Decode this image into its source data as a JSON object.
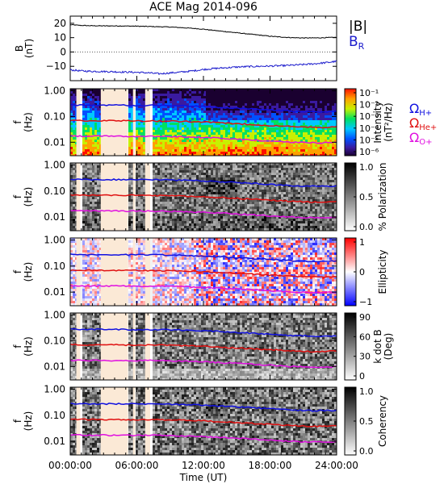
{
  "title": "ACE Mag 2014-096",
  "colors": {
    "br": "#1a1acc",
    "h_plus": "#1010e0",
    "he_plus": "#e01010",
    "o_plus": "#e010e0",
    "mask": "#fbe9d6",
    "line": "#000000"
  },
  "chart_data": [
    {
      "type": "line",
      "panel": "field",
      "ylabel": "B\n(nT)",
      "ylim": [
        -20,
        25
      ],
      "yticks": [
        -10,
        0,
        10,
        20
      ],
      "xlim": [
        0,
        24
      ],
      "legend": [
        "|B|",
        "B_R"
      ],
      "series": [
        {
          "name": "|B|",
          "x": [
            0,
            1,
            2,
            3,
            4,
            5,
            6,
            7,
            8,
            9,
            10,
            11,
            12,
            13,
            14,
            15,
            16,
            17,
            18,
            19,
            20,
            21,
            22,
            23,
            24
          ],
          "values": [
            19,
            18.5,
            18.3,
            18.2,
            18.2,
            18.1,
            18,
            17.8,
            17.6,
            17.4,
            17,
            16.5,
            15.9,
            15,
            14.2,
            13.4,
            12.6,
            11.8,
            11,
            10.4,
            10,
            9.8,
            9.8,
            10,
            10.2
          ]
        },
        {
          "name": "B_R",
          "x": [
            0,
            1,
            2,
            3,
            4,
            5,
            6,
            7,
            8,
            9,
            10,
            11,
            12,
            13,
            14,
            15,
            16,
            17,
            18,
            19,
            20,
            21,
            22,
            23,
            24
          ],
          "values": [
            -12.5,
            -13.2,
            -13.5,
            -13.6,
            -13.8,
            -14,
            -14.2,
            -14.5,
            -15.2,
            -14.6,
            -14,
            -13.2,
            -12.2,
            -11.5,
            -11,
            -10.5,
            -10.2,
            -10,
            -9.8,
            -9.6,
            -9.2,
            -8.8,
            -8.2,
            -7.5,
            -6.5
          ]
        }
      ]
    },
    {
      "type": "heatmap",
      "panel": "intensity",
      "ylabel": "f\n(Hz)",
      "colorbar_label": "Intensity\n(nT²/Hz)",
      "colorbar_ticks": [
        "10⁻¹",
        "10⁻²",
        "10⁻³",
        "10⁻⁴",
        "10⁻⁵",
        "10⁻⁶"
      ],
      "legend": [
        "ΩH+",
        "ΩHe+",
        "ΩO+"
      ]
    },
    {
      "type": "heatmap",
      "panel": "polarization",
      "ylabel": "f\n(Hz)",
      "colorbar_label": "% Polarization",
      "colorbar_ticks": [
        "1.0",
        "0.5",
        "0.0"
      ]
    },
    {
      "type": "heatmap",
      "panel": "ellipticity",
      "ylabel": "f\n(Hz)",
      "colorbar_label": "Ellipticity",
      "colorbar_ticks": [
        "1",
        "0",
        "−1"
      ]
    },
    {
      "type": "heatmap",
      "panel": "kdotb",
      "ylabel": "f\n(Hz)",
      "colorbar_label": "k dot B\n(Deg)",
      "colorbar_ticks": [
        "90",
        "60",
        "30",
        "0"
      ]
    },
    {
      "type": "heatmap",
      "panel": "coherency",
      "ylabel": "f\n(Hz)",
      "colorbar_label": "Coherency",
      "colorbar_ticks": [
        "1.0",
        "0.5",
        "0.0"
      ]
    }
  ],
  "spectrogram": {
    "yticks": [
      "1.00",
      "0.10",
      "0.01"
    ],
    "ylim_hz": [
      0.003,
      1.2
    ],
    "mask_intervals_hours": [
      [
        0.55,
        0.9
      ],
      [
        2.75,
        5.2
      ],
      [
        5.65,
        5.85
      ],
      [
        6.75,
        7.2
      ]
    ],
    "gyro_lines": {
      "x": [
        0,
        2,
        4,
        6,
        8,
        10,
        12,
        14,
        16,
        18,
        20,
        22,
        24
      ],
      "h_plus": [
        0.28,
        0.275,
        0.275,
        0.27,
        0.27,
        0.26,
        0.245,
        0.22,
        0.2,
        0.18,
        0.16,
        0.15,
        0.155
      ],
      "he_plus": [
        0.07,
        0.069,
        0.069,
        0.068,
        0.067,
        0.065,
        0.061,
        0.055,
        0.05,
        0.045,
        0.04,
        0.038,
        0.039
      ],
      "o_plus": [
        0.0175,
        0.0172,
        0.0172,
        0.017,
        0.0168,
        0.0163,
        0.0153,
        0.0138,
        0.0125,
        0.0112,
        0.01,
        0.0095,
        0.0097
      ]
    }
  },
  "xaxis": {
    "ticks": [
      "00:00:00",
      "06:00:00",
      "12:00:00",
      "18:00:00",
      "24:00:00"
    ],
    "label": "Time (UT)"
  }
}
